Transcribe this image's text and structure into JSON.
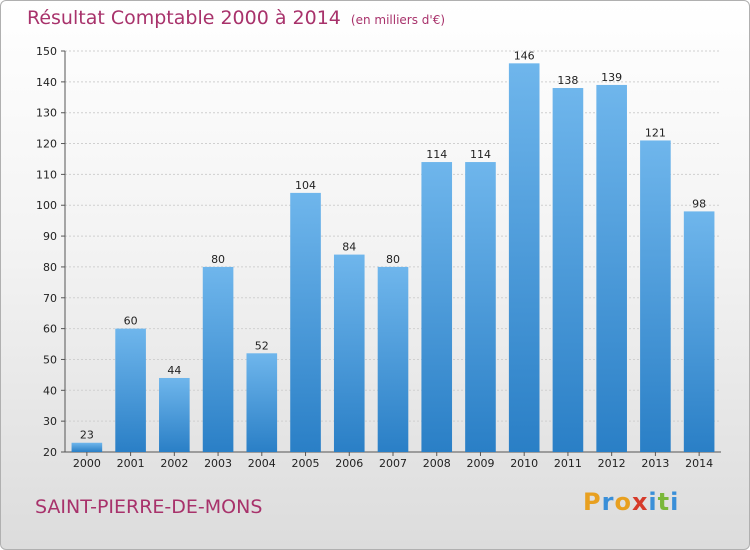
{
  "header": {
    "title": "Résultat Comptable 2000 à 2014",
    "subtitle": "(en milliers d'€)"
  },
  "footer": {
    "location": "SAINT-PIERRE-DE-MONS",
    "brand": {
      "name": "Proxiti",
      "letters": [
        {
          "char": "P",
          "color": "#e8a020"
        },
        {
          "char": "r",
          "color": "#3a8fd8"
        },
        {
          "char": "o",
          "color": "#e8a020"
        },
        {
          "char": "x",
          "color": "#d63a2a"
        },
        {
          "char": "i",
          "color": "#3a8fd8"
        },
        {
          "char": "t",
          "color": "#7ab83a"
        },
        {
          "char": "i",
          "color": "#3a8fd8"
        }
      ]
    }
  },
  "colors": {
    "title": "#a8326b",
    "bar_light": "#6fb6ec",
    "bar_dark": "#2a7fc6",
    "grid": "#d0d0d0",
    "axis_text": "#222222"
  },
  "chart_data": {
    "type": "bar",
    "title": "Résultat Comptable 2000 à 2014",
    "subtitle": "(en milliers d'€)",
    "categories": [
      "2000",
      "2001",
      "2002",
      "2003",
      "2004",
      "2005",
      "2006",
      "2007",
      "2008",
      "2009",
      "2010",
      "2011",
      "2012",
      "2013",
      "2014"
    ],
    "values": [
      23,
      60,
      44,
      80,
      52,
      104,
      84,
      80,
      114,
      114,
      146,
      138,
      139,
      121,
      98
    ],
    "ylim": [
      20,
      150
    ],
    "yticks": [
      20,
      30,
      40,
      50,
      60,
      70,
      80,
      90,
      100,
      110,
      120,
      130,
      140,
      150
    ],
    "grid": true,
    "xlabel": "",
    "ylabel": ""
  }
}
